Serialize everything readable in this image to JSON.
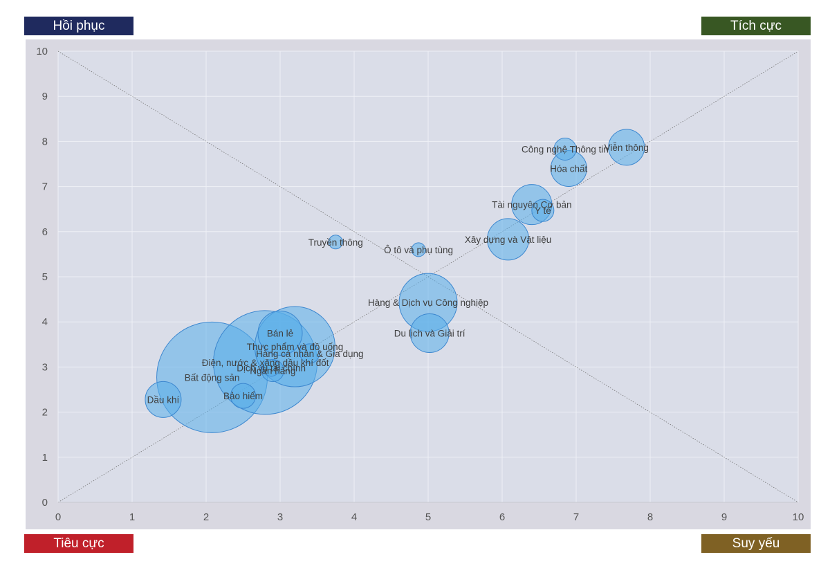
{
  "quadrants": {
    "top_left": {
      "label": "Hồi phục",
      "color": "#1f2a5e"
    },
    "top_right": {
      "label": "Tích cực",
      "color": "#385723"
    },
    "bottom_left": {
      "label": "Tiêu cực",
      "color": "#c0202a"
    },
    "bottom_right": {
      "label": "Suy yếu",
      "color": "#7f6124"
    }
  },
  "colors": {
    "plot_bg": "#dadde8",
    "frame_bg": "#d9d8e1",
    "bubble_fill": "#5aaeea",
    "bubble_stroke": "#3c87cf",
    "grid": "#eef0f6",
    "diagonal": "#777777"
  },
  "chart_data": {
    "type": "scatter",
    "subtype": "bubble",
    "xlim": [
      0,
      10
    ],
    "ylim": [
      0,
      10
    ],
    "xticks": [
      0,
      1,
      2,
      3,
      4,
      5,
      6,
      7,
      8,
      9,
      10
    ],
    "yticks": [
      0,
      1,
      2,
      3,
      4,
      5,
      6,
      7,
      8,
      9,
      10
    ],
    "grid": true,
    "diagonals": true,
    "points": [
      {
        "label": "Bất động sản",
        "x": 2.08,
        "y": 2.77,
        "size": 80
      },
      {
        "label": "Điện, nước & xăng dầu khí đốt",
        "x": 2.8,
        "y": 3.1,
        "size": 75
      },
      {
        "label": "Thực phẩm và đồ uống",
        "x": 3.2,
        "y": 3.45,
        "size": 58
      },
      {
        "label": "Bán lẻ",
        "x": 3.0,
        "y": 3.75,
        "size": 32
      },
      {
        "label": "Hàng & Dịch vụ Công nghiệp",
        "x": 5.0,
        "y": 4.43,
        "size": 42
      },
      {
        "label": "Du lịch và Giải trí",
        "x": 5.02,
        "y": 3.75,
        "size": 28
      },
      {
        "label": "Hàng cá nhân & Gia dụng",
        "x": 3.4,
        "y": 3.3,
        "size": 14
      },
      {
        "label": "Dầu khí",
        "x": 1.42,
        "y": 2.28,
        "size": 26
      },
      {
        "label": "Xây dựng và Vật liệu",
        "x": 6.08,
        "y": 5.83,
        "size": 30
      },
      {
        "label": "Tài nguyên Cơ bản",
        "x": 6.4,
        "y": 6.6,
        "size": 29
      },
      {
        "label": "Viễn thông",
        "x": 7.68,
        "y": 7.87,
        "size": 26
      },
      {
        "label": "Hóa chất",
        "x": 6.9,
        "y": 7.4,
        "size": 26
      },
      {
        "label": "Công nghệ Thông tin",
        "x": 6.85,
        "y": 7.83,
        "size": 16
      },
      {
        "label": "Y tế",
        "x": 6.55,
        "y": 6.47,
        "size": 16
      },
      {
        "label": "Ngân hàng",
        "x": 2.9,
        "y": 2.92,
        "size": 16
      },
      {
        "label": "Dịch vụ tài chính",
        "x": 2.88,
        "y": 2.98,
        "size": 12
      },
      {
        "label": "Bảo hiểm",
        "x": 2.5,
        "y": 2.36,
        "size": 18
      },
      {
        "label": "Truyền thông",
        "x": 3.75,
        "y": 5.77,
        "size": 10
      },
      {
        "label": "Ô tô và phụ tùng",
        "x": 4.87,
        "y": 5.6,
        "size": 10
      }
    ]
  }
}
